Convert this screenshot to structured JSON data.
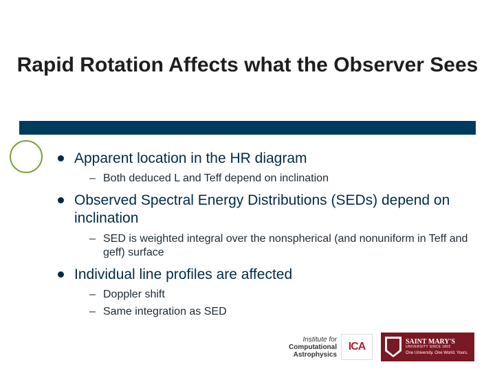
{
  "title": "Rapid Rotation Affects what the Observer Sees",
  "colors": {
    "rule_bg": "#003a5d",
    "circle_border": "#7aa23a",
    "text_main": "#002b45",
    "smu_bg": "#7a1824",
    "ica_red": "#b02030"
  },
  "bullets": {
    "b1": "Apparent location in the HR diagram",
    "b1s1": "Both deduced L and Teff depend on inclination",
    "b2": "Observed Spectral Energy Distributions (SEDs) depend on inclination",
    "b2s1": "SED is weighted integral over the nonspherical (and nonuniform in Teff and geff) surface",
    "b3": "Individual line profiles are affected",
    "b3s1": "Doppler shift",
    "b3s2": "Same integration as SED"
  },
  "logos": {
    "ica_line1": "Institute for",
    "ica_line2": "Computational",
    "ica_line3": "Astrophysics",
    "ica_mark": "ICA",
    "smu_name": "SAINT MARY'S",
    "smu_univ": "UNIVERSITY",
    "smu_since": "SINCE 1802",
    "smu_tag": "One University. One World. Yours."
  }
}
